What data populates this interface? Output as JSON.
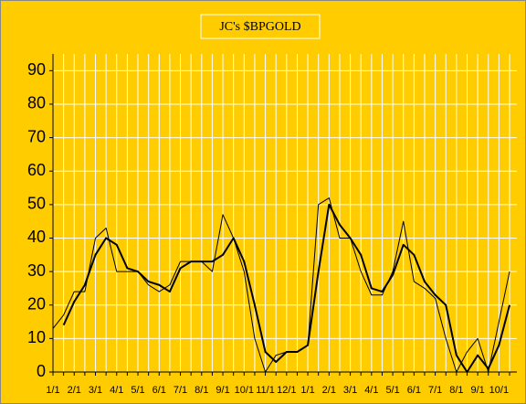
{
  "chart_data": {
    "type": "line",
    "title": "JC's $BPGOLD",
    "categories": [
      "1/1",
      null,
      "2/1",
      null,
      "3/1",
      null,
      "4/1",
      null,
      "5/1",
      null,
      "6/1",
      null,
      "7/1",
      null,
      "8/1",
      null,
      "9/1",
      null,
      "10/1",
      null,
      "11/1",
      null,
      "12/1",
      null,
      "1/1",
      null,
      "2/1",
      null,
      "3/1",
      null,
      "4/1",
      null,
      "5/1",
      null,
      "6/1",
      null,
      "7/1",
      null,
      "8/1",
      null,
      "9/1",
      null,
      "10/1",
      null
    ],
    "series": [
      {
        "color": "#000000",
        "width": 1,
        "values": [
          13,
          17,
          24,
          24,
          40,
          43,
          30,
          30,
          30,
          26,
          24,
          26,
          33,
          33,
          33,
          30,
          47,
          40,
          30,
          10,
          0,
          5,
          6,
          6,
          8,
          50,
          52,
          40,
          40,
          30,
          23,
          23,
          30,
          45,
          27,
          25,
          22,
          10,
          0,
          6,
          10,
          0,
          15,
          30
        ]
      },
      {
        "color": "#000000",
        "width": 2,
        "values": [
          null,
          14,
          21,
          26,
          35,
          40,
          38,
          31,
          30,
          27,
          26,
          24,
          31,
          33,
          33,
          33,
          35,
          40,
          33,
          20,
          6,
          3,
          6,
          6,
          8,
          30,
          50,
          44,
          40,
          35,
          25,
          24,
          29,
          38,
          35,
          27,
          23,
          20,
          5,
          0,
          5,
          1,
          8,
          20
        ]
      }
    ],
    "ylim": [
      0,
      95
    ],
    "yticks": [
      0,
      10,
      20,
      30,
      40,
      50,
      60,
      70,
      80,
      90
    ],
    "grid": true,
    "background": "#ffcc00"
  }
}
